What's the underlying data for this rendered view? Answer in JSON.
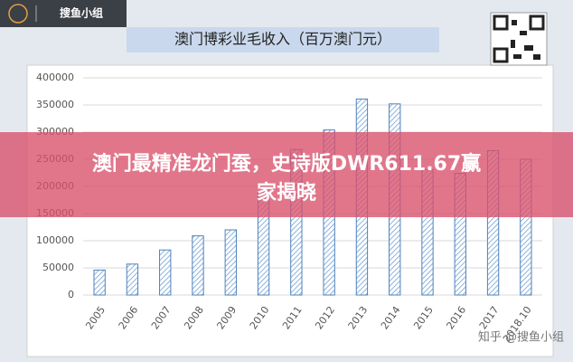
{
  "logo": "搜鱼小组",
  "banner": {
    "title": "澳门最精准龙门蚕，史诗版DWR611.67赢家揭晓"
  },
  "watermark": "知乎 @搜鱼小组",
  "chart_data": {
    "type": "bar",
    "title": "澳门博彩业毛收入（百万澳门元）",
    "categories": [
      "2005",
      "2006",
      "2007",
      "2008",
      "2009",
      "2010",
      "2011",
      "2012",
      "2013",
      "2014",
      "2015",
      "2016",
      "2017",
      "2018.10"
    ],
    "values": [
      46000,
      57000,
      83000,
      109000,
      120000,
      189000,
      268000,
      304000,
      361000,
      352000,
      231000,
      224000,
      266000,
      250000
    ],
    "color": "#4f81bd",
    "ylim": [
      0,
      400000
    ],
    "yticks": [
      0,
      50000,
      100000,
      150000,
      200000,
      250000,
      300000,
      350000,
      400000
    ],
    "grid": true
  }
}
